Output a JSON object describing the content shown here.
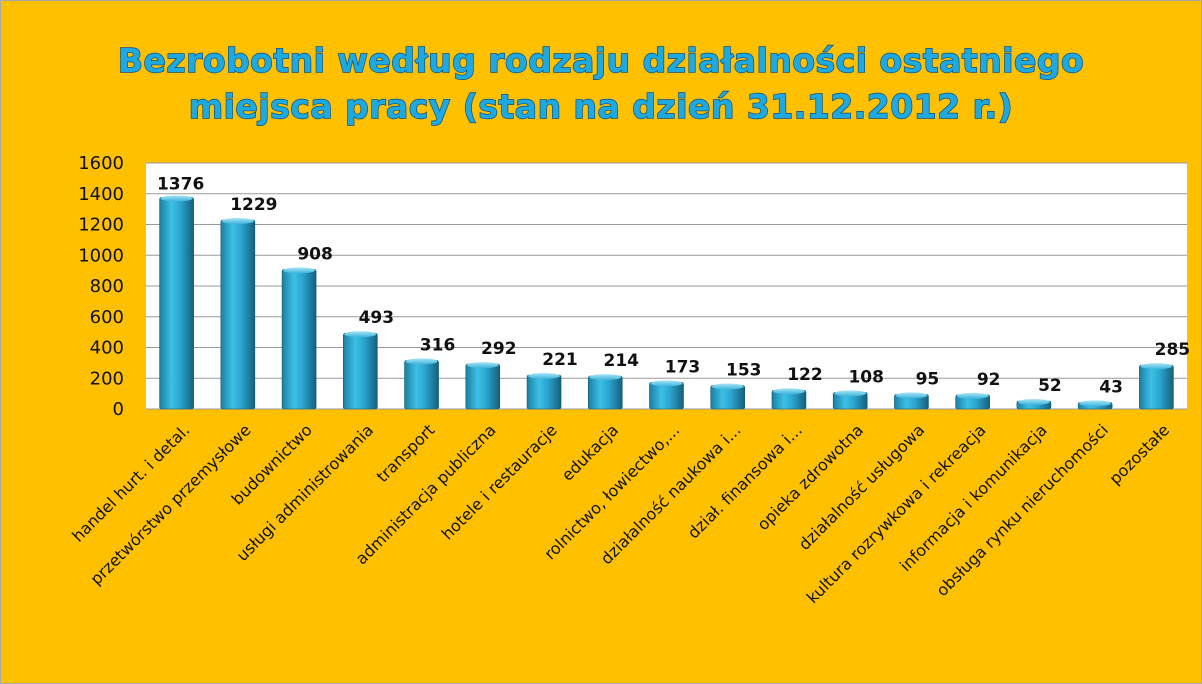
{
  "chart_data": {
    "type": "bar",
    "title": "Bezrobotni według rodzaju działalności ostatniego miejsca pracy  (stan na dzień 31.12.2012 r.)",
    "title_lines": [
      "Bezrobotni według rodzaju działalności ostatniego",
      "miejsca pracy  (stan na dzień 31.12.2012 r.)"
    ],
    "xlabel": "",
    "ylabel": "",
    "ylim": [
      0,
      1600
    ],
    "yticks": [
      0,
      200,
      400,
      600,
      800,
      1000,
      1200,
      1400,
      1600
    ],
    "ytick_labels": [
      "0",
      "200",
      "400",
      "600",
      "800",
      "1000",
      "1200",
      "1400",
      "1600"
    ],
    "grid": true,
    "legend": "none",
    "categories": [
      "handel hurt. i detal.",
      "przetwórstwo przemysłowe",
      "budownictwo",
      "usługi administrowania",
      "transport",
      "administracja publiczna",
      "hotele i restauracje",
      "edukacja",
      "rolnictwo, łowiectwo,...",
      "działalność naukowa i...",
      "dział. finansowa i...",
      "opieka zdrowotna",
      "działalność usługowa",
      "kultura rozrywkowa i rekreacja",
      "informacja i komunikacja",
      "obsługa rynku nieruchomości",
      "pozostałe"
    ],
    "values": [
      1376,
      1229,
      908,
      493,
      316,
      292,
      221,
      214,
      173,
      153,
      122,
      108,
      95,
      92,
      52,
      43,
      285
    ],
    "data_labels": [
      "1376",
      "1229",
      "908",
      "493",
      "316",
      "292",
      "221",
      "214",
      "173",
      "153",
      "122",
      "108",
      "95",
      "92",
      "52",
      "43",
      "285"
    ],
    "colors": {
      "background": "#ffc000",
      "plot_area": "#ffffff",
      "bar_top": "#7fd3ee",
      "bar_mid": "#2eaad3",
      "bar_bottom": "#1a6f8e",
      "title_fill": "#1ea9e0",
      "title_stroke": "#0e4e7a",
      "gridline": "#9a9a9a"
    }
  }
}
